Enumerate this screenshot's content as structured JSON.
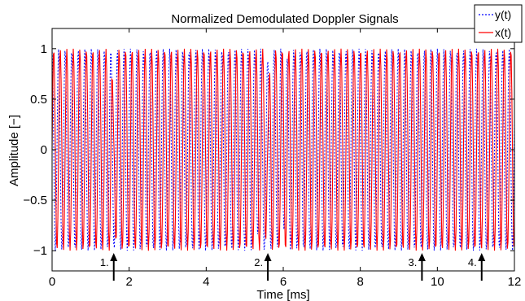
{
  "chart_data": {
    "type": "line",
    "title": "Normalized Demodulated Doppler Signals",
    "xlabel": "Time [ms]",
    "ylabel": "Amplitude [−]",
    "xlim": [
      0,
      12
    ],
    "ylim": [
      -1.2,
      1.2
    ],
    "xticks": [
      0,
      2,
      4,
      6,
      8,
      10,
      12
    ],
    "xtick_labels": [
      "0",
      "2",
      "4",
      "6",
      "8",
      "10",
      "12"
    ],
    "yticks": [
      -1,
      -0.5,
      0,
      0.5,
      1
    ],
    "ytick_labels": [
      "−1",
      "−0.5",
      "0",
      "0.5",
      "1"
    ],
    "grid": false,
    "legend": "top-right",
    "series": [
      {
        "name": "y(t)",
        "color": "#0000ff",
        "style": "dotted",
        "samples_per_ms": 60,
        "points_approx": {
          "form": "cosine",
          "frequency_khz": 5.9,
          "amplitude": 1.0,
          "deep_dropouts_ms": [
            5.45,
            5.95
          ],
          "notes": "near-constant amplitude oscillation between -1 and 1"
        }
      },
      {
        "name": "x(t)",
        "color": "#ff0000",
        "style": "solid",
        "samples_per_ms": 60,
        "points_approx": {
          "form": "sine",
          "frequency_khz": 5.9,
          "amplitude": 1.0,
          "notches_ms": [
            1.6,
            5.6
          ],
          "notes": "near-constant amplitude oscillation between -1 and 1"
        }
      }
    ],
    "annotations": [
      {
        "label": "1.",
        "x": 1.6
      },
      {
        "label": "2.",
        "x": 5.6
      },
      {
        "label": "3.",
        "x": 9.6
      },
      {
        "label": "4.",
        "x": 11.15
      }
    ]
  }
}
